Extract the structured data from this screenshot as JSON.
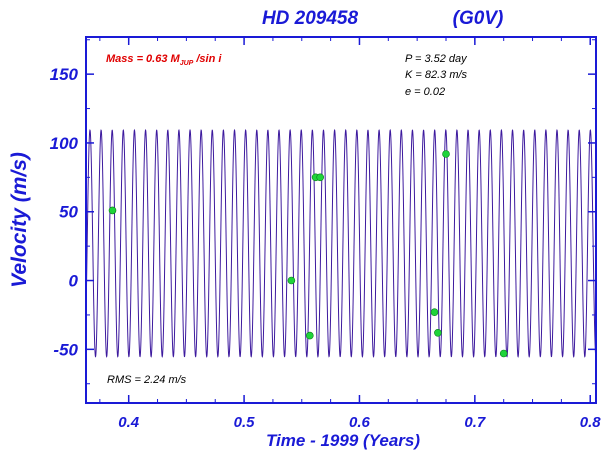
{
  "chart_data": {
    "type": "scatter",
    "title": "HD 209458",
    "spectral_type": "(G0V)",
    "xlabel": "Time - 1999  (Years)",
    "ylabel": "Velocity  (m/s)",
    "xlim": [
      0.363,
      0.805
    ],
    "ylim": [
      -89,
      177
    ],
    "xticks": [
      "0.4",
      "0.5",
      "0.6",
      "0.7",
      "0.8"
    ],
    "yticks": [
      "-50",
      "0",
      "50",
      "100",
      "150"
    ],
    "xtick_values": [
      0.4,
      0.5,
      0.6,
      0.7,
      0.8
    ],
    "ytick_values": [
      -50,
      0,
      50,
      100,
      150
    ],
    "grid": false,
    "colors": {
      "axes": "#1a1ad6",
      "curve": "#3d1a9e",
      "points": "#1fd43a",
      "mass_label": "#e00000"
    },
    "annotations": {
      "mass_prefix": "Mass = 0.63 M",
      "mass_sub": "JUP",
      "mass_suffix": " /sin i",
      "period": "P = 3.52 day",
      "amplitude": "K = 82.3 m/s",
      "eccentricity": "e = 0.02",
      "rms": "RMS = 2.24 m/s"
    },
    "model_curve": {
      "period_days": 3.52,
      "amplitude": 82.3,
      "offset": 27,
      "reference_time": 0.5375
    },
    "points": [
      {
        "x": 0.386,
        "y": 51
      },
      {
        "x": 0.541,
        "y": 0
      },
      {
        "x": 0.557,
        "y": -40
      },
      {
        "x": 0.562,
        "y": 75
      },
      {
        "x": 0.566,
        "y": 75
      },
      {
        "x": 0.665,
        "y": -23
      },
      {
        "x": 0.668,
        "y": -38
      },
      {
        "x": 0.675,
        "y": 92
      },
      {
        "x": 0.725,
        "y": -53
      }
    ]
  }
}
